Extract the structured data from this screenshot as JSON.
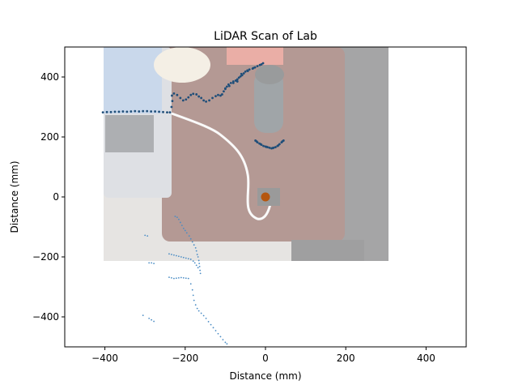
{
  "chart_data": {
    "type": "scatter",
    "title": "LiDAR Scan of Lab",
    "xlabel": "Distance (mm)",
    "ylabel": "Distance (mm)",
    "xlim": [
      -500,
      500
    ],
    "ylim": [
      -500,
      500
    ],
    "xticks": [
      -400,
      -200,
      0,
      200,
      400
    ],
    "yticks": [
      -400,
      -200,
      0,
      200,
      400
    ],
    "grid": false,
    "legend": "none",
    "colors": {
      "scan": "#1f4e79",
      "scan_faint": "#4a8cc4",
      "origin": "#b5560e"
    },
    "background_photo": "overhead desk photo: laptop, water bottle, cable, sensor",
    "series": [
      {
        "role": "wall-scan",
        "points": [
          [
            -405,
            282
          ],
          [
            -395,
            283
          ],
          [
            -385,
            283
          ],
          [
            -375,
            284
          ],
          [
            -365,
            284
          ],
          [
            -355,
            285
          ],
          [
            -345,
            284
          ],
          [
            -335,
            285
          ],
          [
            -325,
            286
          ],
          [
            -315,
            285
          ],
          [
            -305,
            286
          ],
          [
            -295,
            286
          ],
          [
            -285,
            285
          ],
          [
            -275,
            285
          ],
          [
            -265,
            284
          ],
          [
            -255,
            283
          ],
          [
            -245,
            282
          ],
          [
            -238,
            282
          ],
          [
            -234,
            300
          ],
          [
            -232,
            320
          ],
          [
            -233,
            338
          ],
          [
            -228,
            345
          ],
          [
            -220,
            340
          ],
          [
            -212,
            330
          ],
          [
            -205,
            322
          ],
          [
            -198,
            325
          ],
          [
            -192,
            332
          ],
          [
            -186,
            340
          ],
          [
            -180,
            344
          ],
          [
            -172,
            342
          ],
          [
            -166,
            335
          ],
          [
            -160,
            330
          ],
          [
            -154,
            322
          ],
          [
            -148,
            318
          ],
          [
            -140,
            322
          ],
          [
            -132,
            330
          ],
          [
            -124,
            336
          ],
          [
            -118,
            340
          ],
          [
            -112,
            338
          ],
          [
            -108,
            342
          ],
          [
            -104,
            352
          ],
          [
            -100,
            360
          ],
          [
            -96,
            368
          ],
          [
            -92,
            375
          ],
          [
            -86,
            380
          ],
          [
            -80,
            385
          ],
          [
            -74,
            388
          ],
          [
            -70,
            392
          ],
          [
            -66,
            398
          ],
          [
            -62,
            402
          ],
          [
            -58,
            406
          ],
          [
            -54,
            412
          ],
          [
            -50,
            418
          ],
          [
            -45,
            422
          ],
          [
            -40,
            425
          ],
          [
            -32,
            428
          ],
          [
            -26,
            432
          ],
          [
            -20,
            436
          ],
          [
            -14,
            440
          ],
          [
            -10,
            442
          ],
          [
            -6,
            446
          ],
          [
            -70,
            385
          ],
          [
            -80,
            380
          ],
          [
            -90,
            370
          ],
          [
            -100,
            362
          ],
          [
            -60,
            410
          ],
          [
            -44,
            420
          ],
          [
            -30,
            430
          ]
        ]
      },
      {
        "role": "bottle-scan",
        "points": [
          [
            -25,
            188
          ],
          [
            -20,
            182
          ],
          [
            -15,
            178
          ],
          [
            -10,
            174
          ],
          [
            -5,
            170
          ],
          [
            0,
            168
          ],
          [
            5,
            166
          ],
          [
            10,
            164
          ],
          [
            15,
            162
          ],
          [
            20,
            164
          ],
          [
            25,
            166
          ],
          [
            30,
            170
          ],
          [
            35,
            176
          ],
          [
            40,
            182
          ],
          [
            45,
            188
          ],
          [
            -22,
            185
          ],
          [
            -12,
            176
          ],
          [
            2,
            167
          ],
          [
            18,
            163
          ],
          [
            32,
            172
          ],
          [
            42,
            185
          ]
        ]
      },
      {
        "role": "far-scan",
        "points": [
          [
            -225,
            -65
          ],
          [
            -220,
            -68
          ],
          [
            -216,
            -75
          ],
          [
            -212,
            -85
          ],
          [
            -208,
            -95
          ],
          [
            -204,
            -105
          ],
          [
            -200,
            -112
          ],
          [
            -196,
            -120
          ],
          [
            -190,
            -130
          ],
          [
            -186,
            -140
          ],
          [
            -182,
            -150
          ],
          [
            -178,
            -160
          ],
          [
            -174,
            -170
          ],
          [
            -172,
            -180
          ],
          [
            -170,
            -192
          ],
          [
            -168,
            -200
          ],
          [
            -166,
            -212
          ],
          [
            -165,
            -222
          ],
          [
            -164,
            -232
          ],
          [
            -163,
            -245
          ],
          [
            -162,
            -255
          ],
          [
            -240,
            -190
          ],
          [
            -234,
            -192
          ],
          [
            -228,
            -194
          ],
          [
            -222,
            -196
          ],
          [
            -216,
            -198
          ],
          [
            -210,
            -200
          ],
          [
            -204,
            -202
          ],
          [
            -198,
            -204
          ],
          [
            -192,
            -206
          ],
          [
            -186,
            -208
          ],
          [
            -180,
            -214
          ],
          [
            -176,
            -220
          ],
          [
            -172,
            -228
          ],
          [
            -168,
            -236
          ],
          [
            -240,
            -268
          ],
          [
            -234,
            -270
          ],
          [
            -228,
            -272
          ],
          [
            -222,
            -271
          ],
          [
            -216,
            -270
          ],
          [
            -210,
            -269
          ],
          [
            -204,
            -270
          ],
          [
            -198,
            -271
          ],
          [
            -192,
            -272
          ],
          [
            -186,
            -290
          ],
          [
            -182,
            -310
          ],
          [
            -180,
            -328
          ],
          [
            -178,
            -345
          ],
          [
            -174,
            -360
          ],
          [
            -170,
            -372
          ],
          [
            -166,
            -380
          ],
          [
            -160,
            -388
          ],
          [
            -154,
            -396
          ],
          [
            -148,
            -405
          ],
          [
            -142,
            -416
          ],
          [
            -136,
            -426
          ],
          [
            -130,
            -436
          ],
          [
            -124,
            -446
          ],
          [
            -118,
            -456
          ],
          [
            -112,
            -466
          ],
          [
            -106,
            -476
          ],
          [
            -100,
            -485
          ],
          [
            -96,
            -490
          ],
          [
            -300,
            -128
          ],
          [
            -294,
            -130
          ],
          [
            -290,
            -220
          ],
          [
            -284,
            -220
          ],
          [
            -278,
            -222
          ],
          [
            -305,
            -395
          ],
          [
            -290,
            -405
          ],
          [
            -284,
            -410
          ],
          [
            -278,
            -415
          ]
        ]
      }
    ],
    "origin_marker": {
      "x": 0,
      "y": 0
    }
  }
}
